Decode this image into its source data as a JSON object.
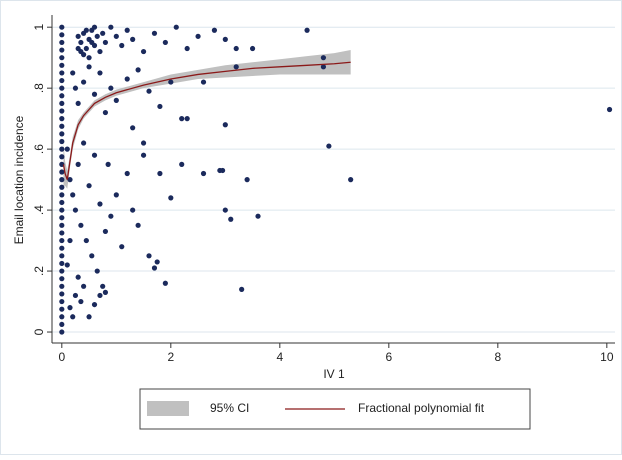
{
  "chart_data": {
    "type": "scatter",
    "x_label": "IV 1",
    "y_label": "Email location incidence",
    "xlim": [
      -0.18,
      10.15
    ],
    "ylim": [
      -0.036,
      1.04
    ],
    "xticks": [
      0,
      2,
      4,
      6,
      8,
      10
    ],
    "yticks": [
      0,
      {
        "value": 0.2,
        "label": ".2"
      },
      {
        "value": 0.4,
        "label": ".4"
      },
      {
        "value": 0.6,
        "label": ".6"
      },
      {
        "value": 0.8,
        "label": ".8"
      },
      1
    ],
    "grid": true,
    "legend": "bottom",
    "series": [
      {
        "color": "#1b2a5c",
        "x": [
          0,
          0,
          0,
          0,
          0,
          0,
          0,
          0,
          0,
          0,
          0,
          0,
          0,
          0,
          0,
          0,
          0,
          0,
          0,
          0,
          0,
          0,
          0,
          0,
          0,
          0,
          0,
          0,
          0,
          0,
          0,
          0,
          0,
          0,
          0,
          0,
          0,
          0,
          0,
          0,
          0,
          0.3,
          0.35,
          0.4,
          0.45,
          0.5,
          0.55,
          0.6,
          0.65,
          0.7,
          0.4,
          0.5,
          0.45,
          0.6,
          0.35,
          0.55,
          0.3,
          0.75,
          0.8,
          0.9,
          1.0,
          1.1,
          1.2,
          1.3,
          1.5,
          1.7,
          1.9,
          2.1,
          2.3,
          2.5,
          2.8,
          3.0,
          3.2,
          3.5,
          4.5,
          4.8,
          4.8,
          0.2,
          0.25,
          0.3,
          0.4,
          0.5,
          0.6,
          0.7,
          0.8,
          0.9,
          1.0,
          1.2,
          1.4,
          1.6,
          1.8,
          2.0,
          2.2,
          2.3,
          2.6,
          3.0,
          3.2,
          1.3,
          1.5,
          0.1,
          0.15,
          0.2,
          0.25,
          0.3,
          0.35,
          0.4,
          0.45,
          0.5,
          0.55,
          0.6,
          0.65,
          0.7,
          0.7,
          0.75,
          0.8,
          0.85,
          0.9,
          1.0,
          1.1,
          1.2,
          1.3,
          1.4,
          1.5,
          1.6,
          1.7,
          1.75,
          1.8,
          1.9,
          2.0,
          2.2,
          2.6,
          2.9,
          2.95,
          3.0,
          3.1,
          3.3,
          3.4,
          3.6,
          4.9,
          5.3,
          10.05,
          0.15,
          0.2,
          0.25,
          0.3,
          0.1,
          0.15,
          0.35,
          0.4,
          0.5,
          0.6,
          0.8
        ],
        "values": [
          0,
          0.025,
          0.05,
          0.075,
          0.1,
          0.125,
          0.15,
          0.175,
          0.2,
          0.225,
          0.25,
          0.275,
          0.3,
          0.325,
          0.35,
          0.375,
          0.4,
          0.425,
          0.45,
          0.475,
          0.5,
          0.525,
          0.55,
          0.575,
          0.6,
          0.625,
          0.65,
          0.675,
          0.7,
          0.725,
          0.75,
          0.775,
          0.8,
          0.825,
          0.85,
          0.875,
          0.9,
          0.925,
          0.95,
          0.975,
          1,
          0.97,
          0.95,
          0.98,
          0.93,
          0.96,
          0.99,
          0.94,
          0.97,
          0.92,
          0.91,
          0.9,
          0.99,
          1,
          0.92,
          0.95,
          0.93,
          0.98,
          0.95,
          1,
          0.97,
          0.94,
          0.99,
          0.96,
          0.92,
          0.98,
          0.95,
          1,
          0.93,
          0.97,
          0.99,
          0.96,
          0.93,
          0.93,
          0.99,
          0.87,
          0.9,
          0.85,
          0.8,
          0.75,
          0.82,
          0.87,
          0.78,
          0.85,
          0.72,
          0.8,
          0.76,
          0.83,
          0.86,
          0.79,
          0.74,
          0.82,
          0.7,
          0.7,
          0.82,
          0.68,
          0.87,
          0.67,
          0.62,
          0.6,
          0.5,
          0.45,
          0.4,
          0.55,
          0.35,
          0.62,
          0.3,
          0.48,
          0.25,
          0.58,
          0.2,
          0.42,
          0.12,
          0.15,
          0.33,
          0.55,
          0.38,
          0.45,
          0.28,
          0.52,
          0.4,
          0.35,
          0.58,
          0.25,
          0.21,
          0.23,
          0.52,
          0.16,
          0.44,
          0.55,
          0.52,
          0.53,
          0.53,
          0.4,
          0.37,
          0.14,
          0.5,
          0.38,
          0.61,
          0.5,
          0.73,
          0.08,
          0.05,
          0.12,
          0.18,
          0.22,
          0.3,
          0.1,
          0.15,
          0.05,
          0.09,
          0.13
        ]
      }
    ],
    "ci": {
      "name": "95% CI",
      "color": "#c0c0c0",
      "x": [
        0.03,
        0.06,
        0.1,
        0.15,
        0.2,
        0.3,
        0.4,
        0.6,
        0.8,
        1.0,
        1.5,
        2,
        2.5,
        3,
        3.5,
        4,
        4.5,
        5,
        5.3
      ],
      "lower": [
        0.48,
        0.48,
        0.47,
        0.54,
        0.6,
        0.665,
        0.7,
        0.74,
        0.76,
        0.775,
        0.8,
        0.815,
        0.83,
        0.835,
        0.84,
        0.845,
        0.845,
        0.845,
        0.845
      ],
      "upper": [
        0.62,
        0.56,
        0.53,
        0.58,
        0.64,
        0.695,
        0.72,
        0.76,
        0.78,
        0.795,
        0.82,
        0.845,
        0.86,
        0.875,
        0.885,
        0.895,
        0.905,
        0.915,
        0.925
      ]
    },
    "fit": {
      "name": "Fractional polynomial fit",
      "color": "#8b1a1a",
      "x": [
        0.03,
        0.06,
        0.1,
        0.15,
        0.2,
        0.3,
        0.4,
        0.6,
        0.8,
        1.0,
        1.5,
        2,
        2.5,
        3,
        3.5,
        4,
        4.5,
        5,
        5.3
      ],
      "values": [
        0.55,
        0.52,
        0.5,
        0.56,
        0.62,
        0.68,
        0.71,
        0.75,
        0.77,
        0.785,
        0.81,
        0.83,
        0.845,
        0.855,
        0.865,
        0.87,
        0.875,
        0.88,
        0.885
      ]
    }
  }
}
